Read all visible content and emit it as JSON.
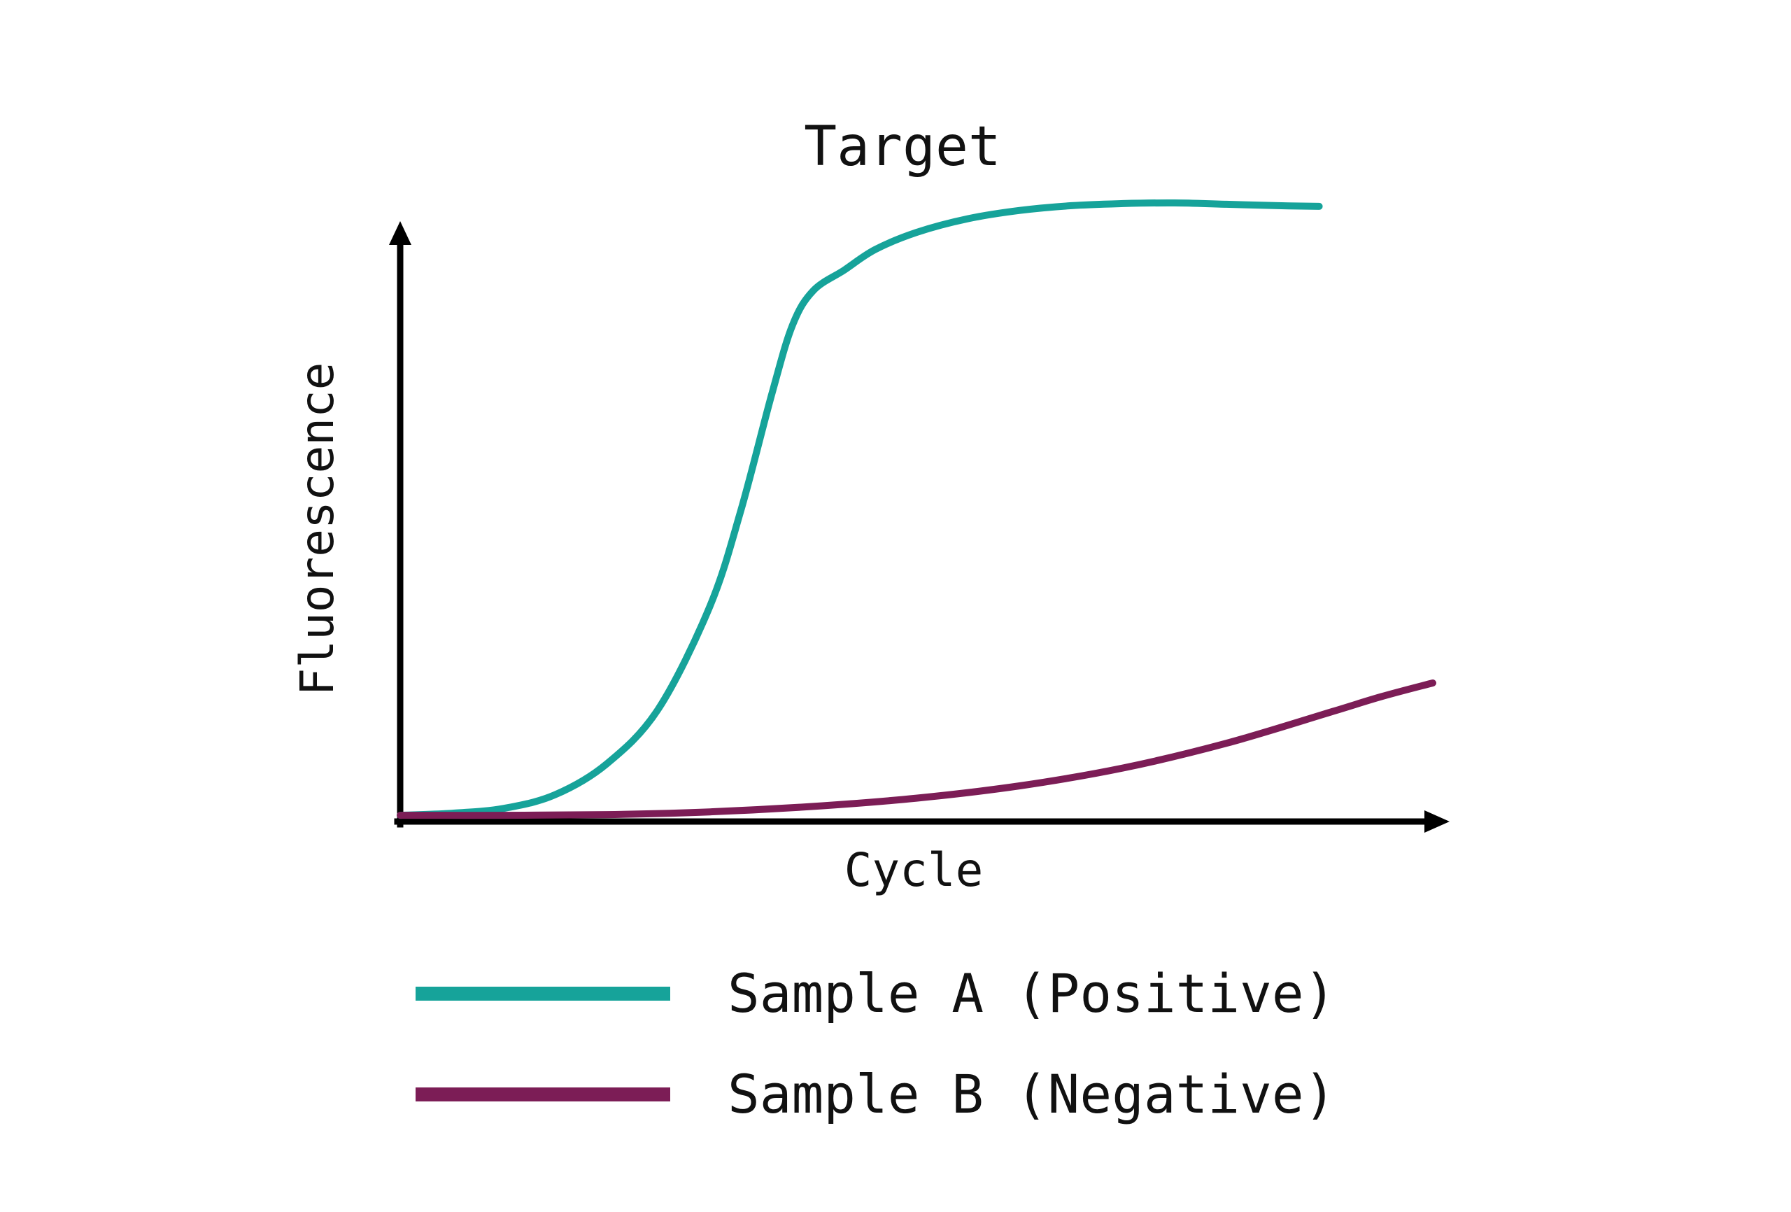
{
  "chart_data": {
    "type": "line",
    "title": "Target",
    "xlabel": "Cycle",
    "ylabel": "Fluorescence",
    "xlim": [
      0,
      100
    ],
    "ylim": [
      0,
      100
    ],
    "grid": false,
    "ticks_shown": false,
    "legend_position": "bottom",
    "series": [
      {
        "name": "Sample A (Positive)",
        "color": "#16a39a",
        "points": [
          [
            0,
            0.5
          ],
          [
            5,
            0.8
          ],
          [
            10,
            1.5
          ],
          [
            15,
            3.5
          ],
          [
            20,
            8
          ],
          [
            25,
            16
          ],
          [
            30,
            31
          ],
          [
            33,
            45
          ],
          [
            36,
            62
          ],
          [
            38,
            72
          ],
          [
            40,
            77
          ],
          [
            43,
            80
          ],
          [
            46,
            83
          ],
          [
            50,
            85.5
          ],
          [
            55,
            87.5
          ],
          [
            60,
            88.7
          ],
          [
            65,
            89.4
          ],
          [
            70,
            89.7
          ],
          [
            75,
            89.8
          ],
          [
            80,
            89.6
          ],
          [
            85,
            89.4
          ],
          [
            89,
            89.3
          ]
        ]
      },
      {
        "name": "Sample B (Negative)",
        "color": "#7c1d56",
        "points": [
          [
            0,
            0.5
          ],
          [
            10,
            0.5
          ],
          [
            20,
            0.6
          ],
          [
            30,
            1.0
          ],
          [
            40,
            1.8
          ],
          [
            50,
            3.0
          ],
          [
            60,
            4.8
          ],
          [
            70,
            7.4
          ],
          [
            80,
            11.0
          ],
          [
            90,
            15.5
          ],
          [
            95,
            17.8
          ],
          [
            100,
            19.8
          ]
        ]
      }
    ]
  }
}
